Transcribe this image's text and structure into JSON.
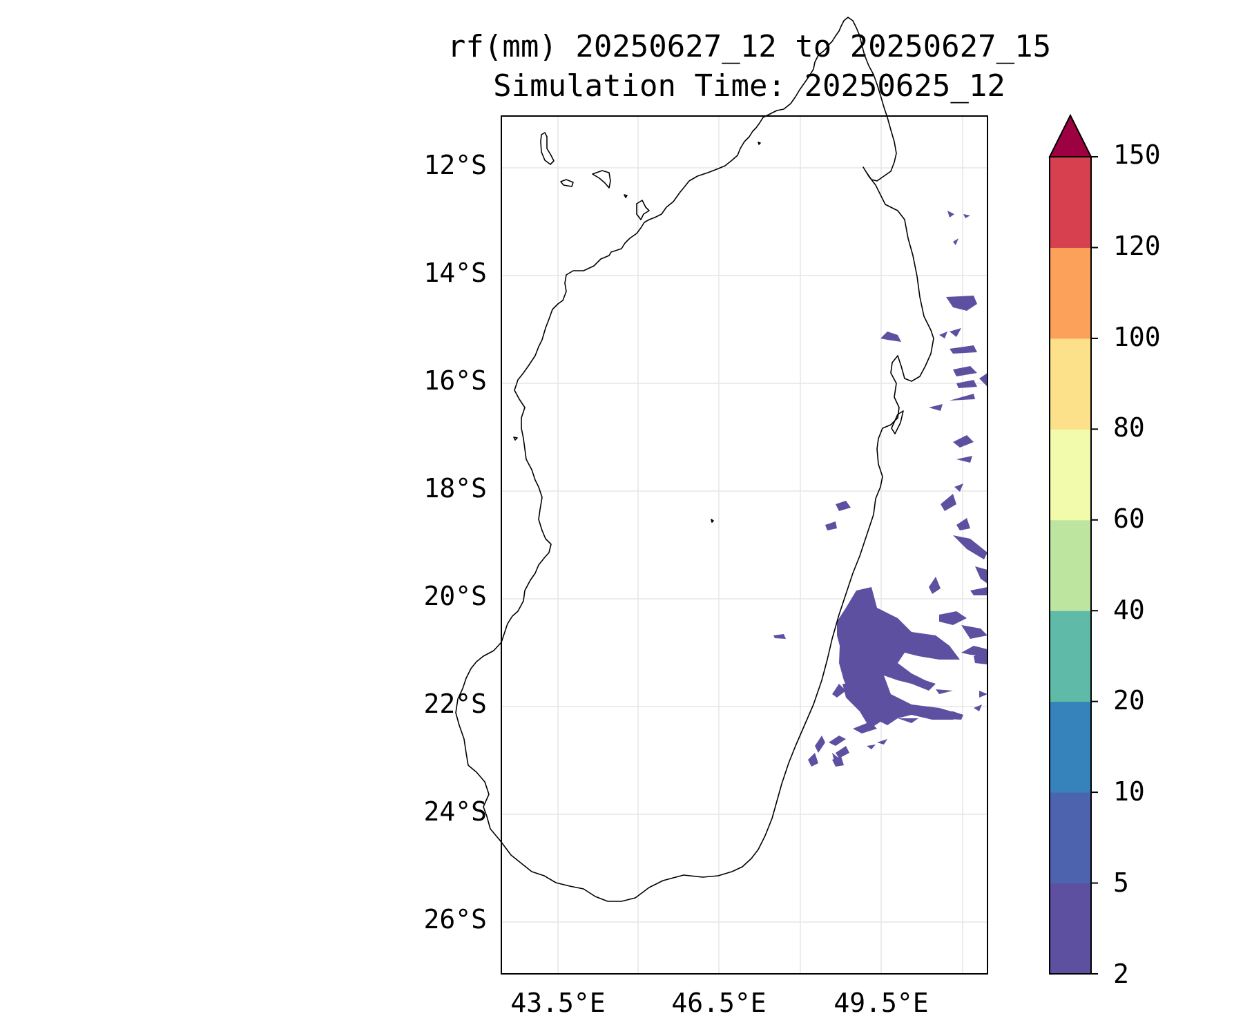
{
  "title": {
    "line1": "rf(mm) 20250627_12 to 20250627_15",
    "line2": "Simulation Time: 20250625_12"
  },
  "map": {
    "lat_labels": [
      "12°S",
      "14°S",
      "16°S",
      "18°S",
      "20°S",
      "22°S",
      "24°S",
      "26°S"
    ],
    "lon_labels": [
      "43.5°E",
      "46.5°E",
      "49.5°E"
    ],
    "lat_range": [
      -26.9,
      -11.0
    ],
    "lon_range": [
      42.45,
      51.5
    ],
    "grid": true,
    "coastline_color": "#000000",
    "precip_color": "#5e50a1"
  },
  "colorbar": {
    "levels": [
      "2",
      "5",
      "10",
      "20",
      "40",
      "60",
      "80",
      "100",
      "120",
      "150"
    ],
    "colors": [
      "#5e50a1",
      "#4e63ae",
      "#3682ba",
      "#5fbaa8",
      "#bde5a0",
      "#f2faac",
      "#fce08a",
      "#fba15a",
      "#d7404e"
    ],
    "extend_color": "#9e0142",
    "extend": "max"
  }
}
